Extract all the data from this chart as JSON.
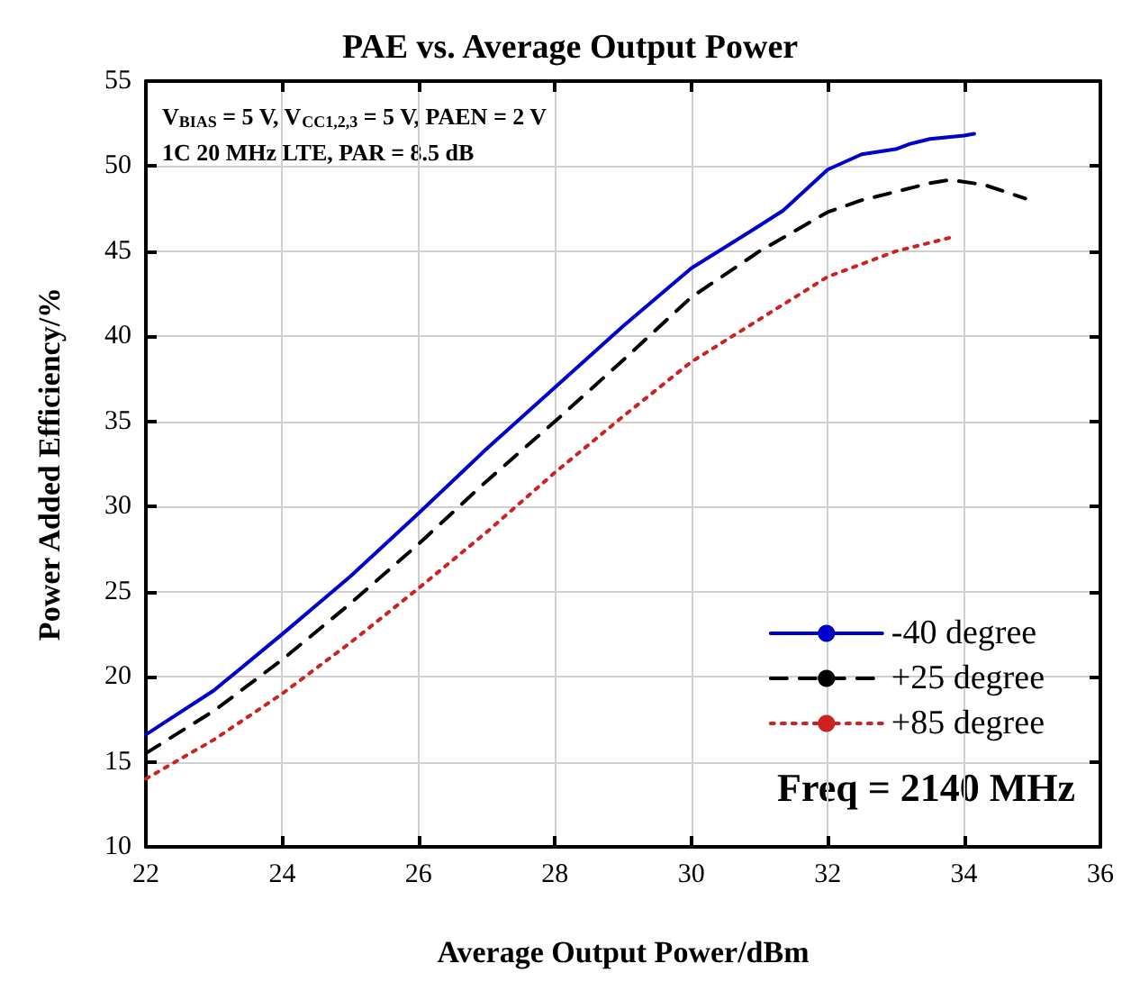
{
  "chart_data": {
    "type": "line",
    "title": "PAE vs. Average Output Power",
    "xlabel": "Average Output Power/dBm",
    "ylabel": "Power Added Efficiency/%",
    "annotations": [
      "V$_{BIAS}$ = 5 V, V$_{CC1,2,3}$ = 5 V, PAEN = 2 V",
      "1C 20 MHz LTE, PAR = 8.5 dB",
      "Freq = 2140 MHz"
    ],
    "series": [
      {
        "name": "-40 degree",
        "color": "#0000cc",
        "line_style": "solid",
        "x": [
          22,
          23,
          24,
          25,
          26,
          27,
          28,
          29,
          30,
          31,
          31.35,
          32,
          32.5,
          33,
          33.2,
          33.5,
          34,
          34.15
        ],
        "values": [
          16.6,
          19.2,
          22.5,
          25.9,
          29.6,
          33.4,
          37,
          40.6,
          44,
          46.5,
          47.4,
          49.8,
          50.7,
          51,
          51.3,
          51.6,
          51.8,
          51.9
        ]
      },
      {
        "name": "+25 degree",
        "color": "#000000",
        "line_style": "dashed",
        "x": [
          22,
          23,
          24,
          25,
          26,
          27,
          28,
          29,
          30,
          31,
          32,
          32.5,
          33,
          33.5,
          33.8,
          34.3,
          34.9
        ],
        "values": [
          15.5,
          18,
          21,
          24.3,
          27.8,
          31.5,
          35,
          38.6,
          42.3,
          45,
          47.3,
          48,
          48.5,
          49,
          49.2,
          48.9,
          48.1
        ]
      },
      {
        "name": "+85 degree",
        "color": "#cc2222",
        "line_style": "dotted",
        "x": [
          22,
          23,
          24,
          25,
          26,
          27,
          28,
          29,
          30,
          31,
          32,
          33,
          33.8
        ],
        "values": [
          14,
          16.3,
          19,
          22,
          25.2,
          28.5,
          32,
          35.3,
          38.5,
          41,
          43.5,
          45,
          45.8
        ]
      }
    ],
    "xlim": [
      22,
      36
    ],
    "xticks": [
      22,
      24,
      26,
      28,
      30,
      32,
      34,
      36
    ],
    "ylim": [
      10,
      55
    ],
    "yticks": [
      10,
      15,
      20,
      25,
      30,
      35,
      40,
      45,
      50,
      55
    ],
    "grid": true,
    "legend": "bottom right",
    "marker": "none"
  }
}
